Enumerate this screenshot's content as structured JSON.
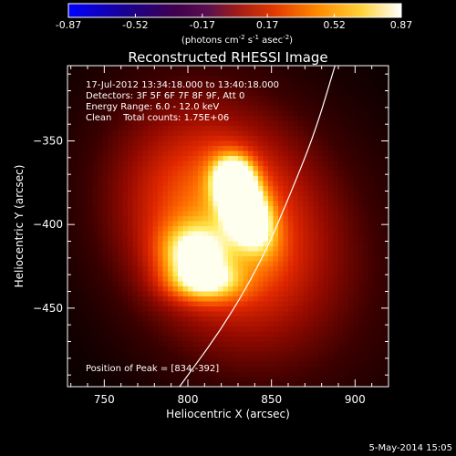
{
  "colorbar": {
    "ticks": [
      "-0.87",
      "-0.52",
      "-0.17",
      "0.17",
      "0.52",
      "0.87"
    ],
    "unit_base": "(photons cm",
    "unit_exp1": "-2",
    "unit_mid": " s",
    "unit_exp2": "-1",
    "unit_mid2": " asec",
    "unit_exp3": "-2",
    "unit_close": ")"
  },
  "annotations": {
    "time_range": "17-Jul-2012 13:34:18.000 to 13:40:18.000",
    "detectors": "Detectors: 3F 5F 6F 7F 8F 9F, Att 0",
    "energy": "Energy Range: 6.0 - 12.0 keV",
    "clean": "Clean    Total counts: 1.75E+06",
    "peak": "Position of Peak = [834,-392]"
  },
  "footer": {
    "date": "5-May-2014 15:05"
  },
  "chart_data": {
    "type": "heatmap",
    "title": "Reconstructed RHESSI Image",
    "xlabel": "Heliocentric X (arcsec)",
    "ylabel": "Heliocentric Y (arcsec)",
    "xlim": [
      728,
      920
    ],
    "ylim": [
      -497,
      -305
    ],
    "xticks": [
      750,
      800,
      850,
      900
    ],
    "yticks": [
      -350,
      -400,
      -450
    ],
    "colorbar_range": [
      -0.87,
      0.87
    ],
    "colormap": "red-temperature",
    "peak": [
      834,
      -392
    ],
    "sources": [
      {
        "x": 834,
        "y": -390,
        "sx": 9,
        "sy": 17,
        "rot": 25,
        "amp": 0.95
      },
      {
        "x": 828,
        "y": -372,
        "sx": 8,
        "sy": 9,
        "rot": 0,
        "amp": 0.6
      },
      {
        "x": 803,
        "y": -418,
        "sx": 14,
        "sy": 12,
        "rot": -10,
        "amp": 0.55
      },
      {
        "x": 810,
        "y": -435,
        "sx": 16,
        "sy": 8,
        "rot": 0,
        "amp": 0.45
      },
      {
        "x": 818,
        "y": -398,
        "sx": 38,
        "sy": 48,
        "rot": 30,
        "amp": 0.52
      },
      {
        "x": 840,
        "y": -410,
        "sx": 60,
        "sy": 75,
        "rot": 35,
        "amp": 0.22
      }
    ],
    "limb_curve": [
      [
        795,
        -497
      ],
      [
        822,
        -460
      ],
      [
        845,
        -420
      ],
      [
        862,
        -380
      ],
      [
        876,
        -345
      ],
      [
        888,
        -305
      ]
    ]
  }
}
